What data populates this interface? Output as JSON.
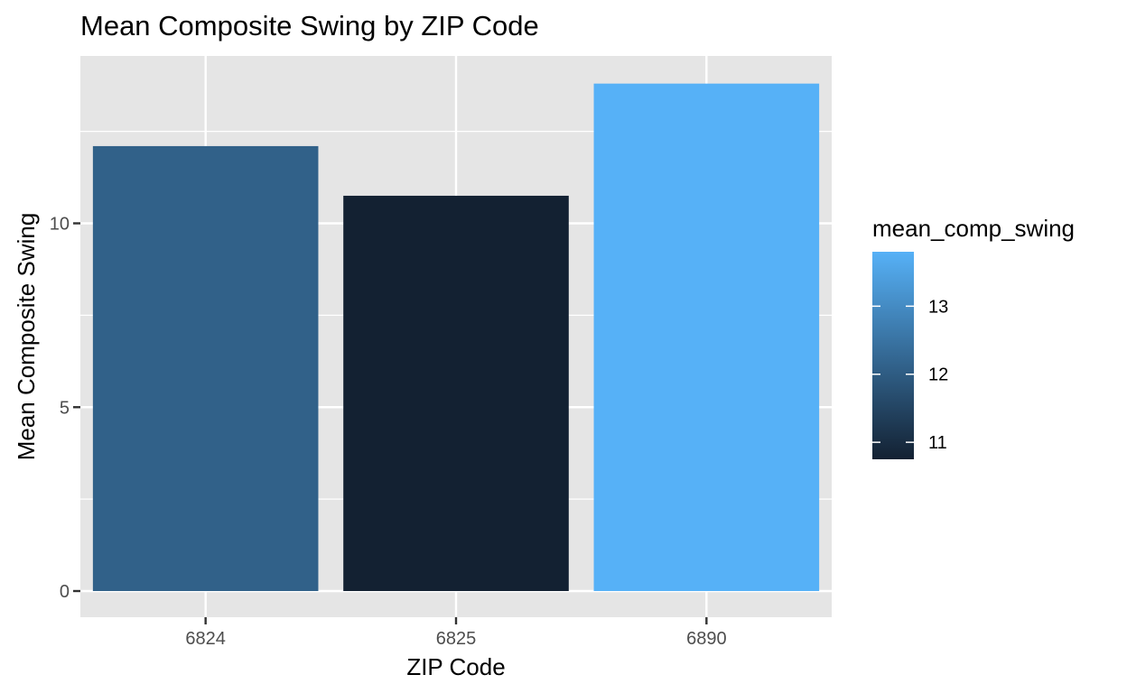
{
  "chart_data": {
    "type": "bar",
    "title": "Mean Composite Swing by ZIP Code",
    "xlabel": "ZIP Code",
    "ylabel": "Mean Composite Swing",
    "categories": [
      "6824",
      "6825",
      "6890"
    ],
    "values": [
      12.1,
      10.75,
      13.8
    ],
    "ylim": [
      0,
      14.5
    ],
    "yticks": [
      0,
      5,
      10
    ],
    "grid": true,
    "colors": {
      "panel_background": "#e5e5e5",
      "grid_line": "#ffffff",
      "gradient_low": "#132132",
      "gradient_high": "#56b1f7"
    },
    "legend": {
      "title": "mean_comp_swing",
      "type": "colorbar",
      "range": [
        10.75,
        13.8
      ],
      "ticks": [
        "11",
        "12",
        "13"
      ],
      "placement": "right"
    }
  }
}
